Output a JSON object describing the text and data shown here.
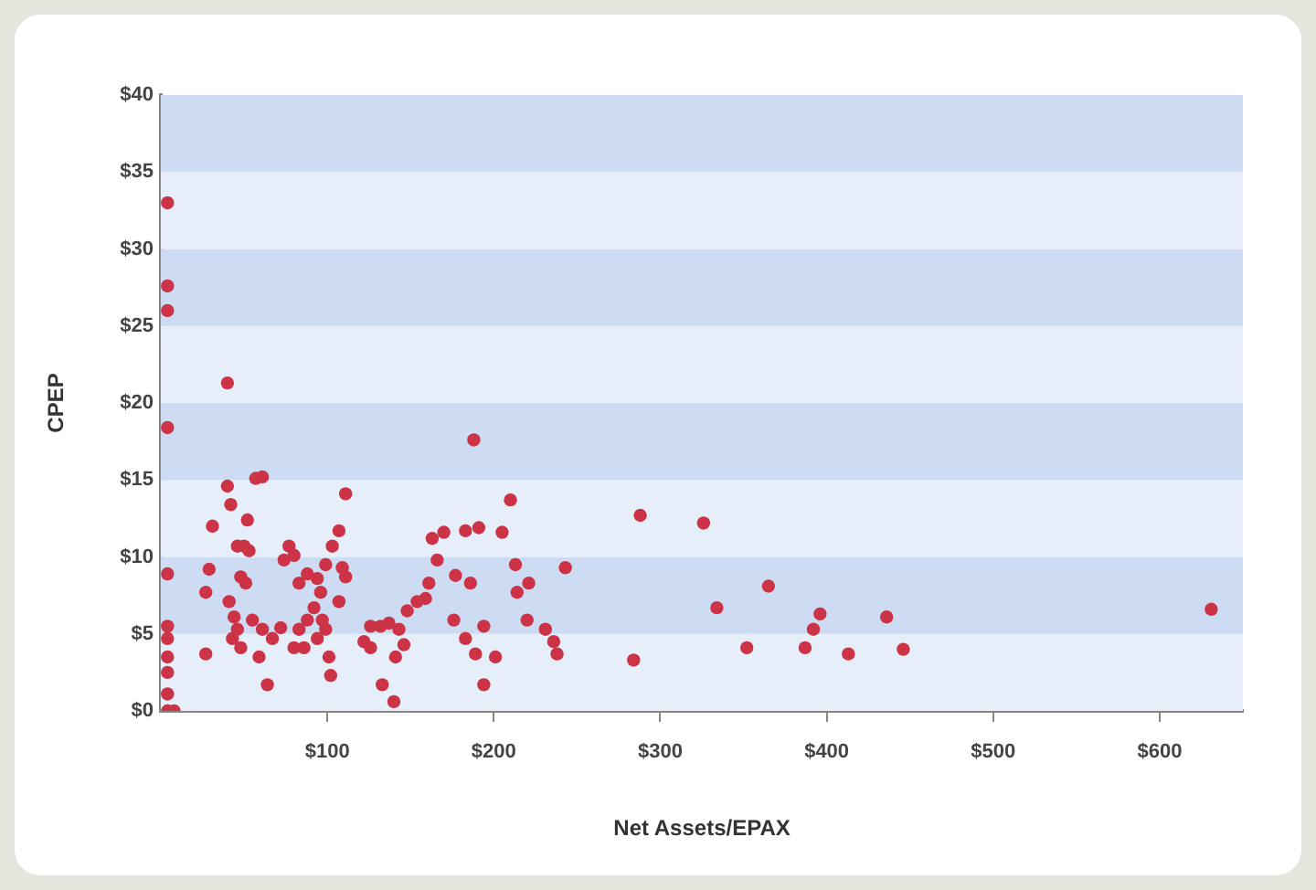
{
  "chart_data": {
    "type": "scatter",
    "xlabel": "Net Assets/EPAX",
    "ylabel": "CPEP",
    "marker": "circle",
    "grid": false,
    "legend": false,
    "xlim": [
      0,
      650
    ],
    "ylim": [
      0,
      40
    ],
    "xticks": [
      {
        "value": 100,
        "label": "$100"
      },
      {
        "value": 200,
        "label": "$200"
      },
      {
        "value": 300,
        "label": "$300"
      },
      {
        "value": 400,
        "label": "$400"
      },
      {
        "value": 500,
        "label": "$500"
      },
      {
        "value": 600,
        "label": "$600"
      }
    ],
    "yticks": [
      {
        "value": 0,
        "label": "$0"
      },
      {
        "value": 5,
        "label": "$5"
      },
      {
        "value": 10,
        "label": "$10"
      },
      {
        "value": 15,
        "label": "$15"
      },
      {
        "value": 20,
        "label": "$20"
      },
      {
        "value": 25,
        "label": "$25"
      },
      {
        "value": 30,
        "label": "$30"
      },
      {
        "value": 35,
        "label": "$35"
      },
      {
        "value": 40,
        "label": "$40"
      }
    ],
    "bands": [
      {
        "axis": "y",
        "from": 0,
        "to": 5,
        "color": "#e6eef9"
      },
      {
        "axis": "y",
        "from": 5,
        "to": 10,
        "color": "#cddcf2"
      },
      {
        "axis": "y",
        "from": 10,
        "to": 15,
        "color": "#e6eef9"
      },
      {
        "axis": "y",
        "from": 15,
        "to": 20,
        "color": "#cddcf2"
      },
      {
        "axis": "y",
        "from": 20,
        "to": 25,
        "color": "#e6eef9"
      },
      {
        "axis": "y",
        "from": 25,
        "to": 30,
        "color": "#cddcf2"
      },
      {
        "axis": "y",
        "from": 30,
        "to": 35,
        "color": "#e6eef9"
      },
      {
        "axis": "y",
        "from": 35,
        "to": 40,
        "color": "#cddcf2"
      }
    ],
    "series": [
      {
        "color": "#cc3347",
        "x": [
          4,
          4,
          4,
          4,
          4,
          4,
          4,
          4,
          4,
          4,
          8,
          4,
          40,
          40,
          31,
          42,
          29,
          27,
          27,
          57,
          61,
          52,
          46,
          50,
          53,
          48,
          51,
          41,
          44,
          46,
          43,
          48,
          55,
          61,
          72,
          67,
          59,
          64,
          77,
          80,
          74,
          83,
          88,
          94,
          99,
          103,
          107,
          111,
          109,
          96,
          92,
          88,
          83,
          80,
          86,
          94,
          99,
          101,
          102,
          107,
          111,
          97,
          126,
          132,
          137,
          143,
          122,
          126,
          141,
          133,
          140,
          146,
          148,
          154,
          159,
          161,
          163,
          170,
          166,
          183,
          188,
          191,
          177,
          186,
          176,
          183,
          189,
          194,
          194,
          201,
          205,
          210,
          213,
          214,
          221,
          220,
          231,
          236,
          238,
          243,
          284,
          288,
          326,
          334,
          352,
          365,
          387,
          392,
          396,
          413,
          436,
          446,
          631
        ],
        "values": [
          33,
          27.6,
          26,
          18.4,
          8.9,
          5.5,
          4.7,
          3.5,
          2.5,
          0,
          0,
          1.1,
          21.3,
          14.6,
          12,
          13.4,
          9.2,
          7.7,
          3.7,
          15.1,
          15.2,
          12.4,
          10.7,
          10.7,
          10.4,
          8.7,
          8.3,
          7.1,
          6.1,
          5.3,
          4.7,
          4.1,
          5.9,
          5.3,
          5.4,
          4.7,
          3.5,
          1.7,
          10.7,
          10.1,
          9.8,
          8.3,
          8.9,
          8.6,
          9.5,
          10.7,
          11.7,
          14.1,
          9.3,
          7.7,
          6.7,
          5.9,
          5.3,
          4.1,
          4.1,
          4.7,
          5.3,
          3.5,
          2.3,
          7.1,
          8.7,
          5.9,
          5.5,
          5.5,
          5.7,
          5.3,
          4.5,
          4.1,
          3.5,
          1.7,
          0.6,
          4.3,
          6.5,
          7.1,
          7.3,
          8.3,
          11.2,
          11.6,
          9.8,
          11.7,
          17.6,
          11.9,
          8.8,
          8.3,
          5.9,
          4.7,
          3.7,
          1.7,
          5.5,
          3.5,
          11.6,
          13.7,
          9.5,
          7.7,
          8.3,
          5.9,
          5.3,
          4.5,
          3.7,
          9.3,
          3.3,
          12.7,
          12.2,
          6.7,
          4.1,
          8.1,
          4.1,
          5.3,
          6.3,
          3.7,
          6.1,
          4,
          6.6
        ]
      }
    ]
  }
}
